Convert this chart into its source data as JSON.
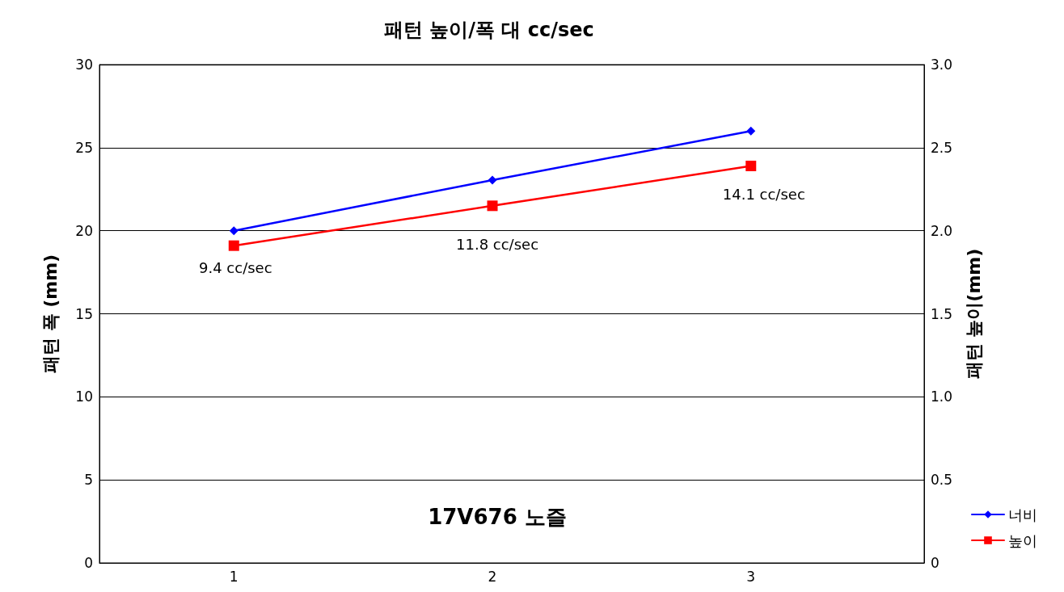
{
  "chart_data": {
    "type": "line",
    "title": "패턴 높이/폭 대 cc/sec",
    "ylabel": "패턴 폭 (mm)",
    "y2label": "패턴 높이(mm)",
    "x": [
      1,
      2,
      3
    ],
    "xlim": [
      0.48,
      3.67
    ],
    "xticks": [
      1,
      2,
      3
    ],
    "ylim": [
      0,
      30
    ],
    "yticks": [
      0,
      5,
      10,
      15,
      20,
      25,
      30
    ],
    "y2lim": [
      0,
      3
    ],
    "y2ticks": [
      {
        "value": 0,
        "label": "0"
      },
      {
        "value": 0.5,
        "label": "0.5"
      },
      {
        "value": 1,
        "label": "1.0"
      },
      {
        "value": 1.5,
        "label": "1.5"
      },
      {
        "value": 2,
        "label": "2.0"
      },
      {
        "value": 2.5,
        "label": "2.5"
      },
      {
        "value": 3,
        "label": "3.0"
      }
    ],
    "series": [
      {
        "name": "너비",
        "color": "#0000ff",
        "marker": "diamond",
        "values": [
          20,
          23.05,
          26
        ]
      },
      {
        "name": "높이",
        "color": "#ff0000",
        "marker": "square",
        "axis": "y2",
        "values": [
          1.91,
          2.15,
          2.39
        ]
      }
    ],
    "annotations": [
      "9.4 cc/sec",
      "11.8 cc/sec",
      "14.1 cc/sec",
      "17V676 노즐"
    ],
    "grid": "y",
    "legend": "bottom right",
    "line_style": "solid"
  }
}
